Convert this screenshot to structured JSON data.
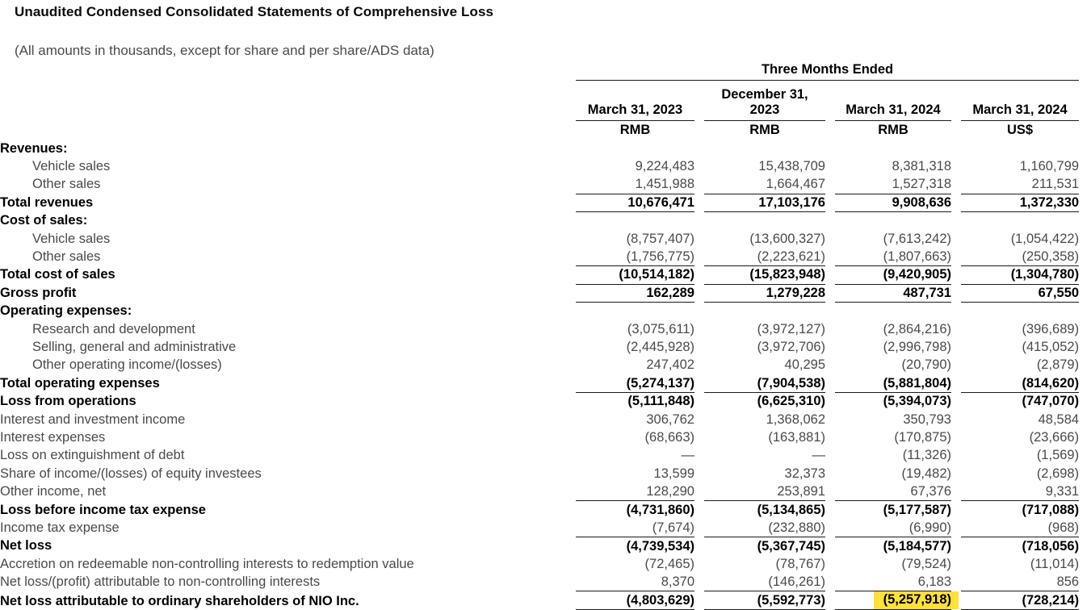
{
  "title": "Unaudited Condensed Consolidated Statements of Comprehensive Loss",
  "subtitle": "(All amounts in thousands, except for share and per share/ADS data)",
  "colors": {
    "highlight": "#ffe138",
    "text_primary": "#000000",
    "text_secondary": "#4a4a4a",
    "rule": "#1a1a1a"
  },
  "table": {
    "group_header": "Three Months Ended",
    "columns": [
      {
        "period": "March 31, 2023",
        "currency": "RMB"
      },
      {
        "period": "December 31, 2023",
        "currency": "RMB"
      },
      {
        "period": "March 31, 2024",
        "currency": "RMB"
      },
      {
        "period": "March 31, 2024",
        "currency": "US$"
      }
    ],
    "rows": [
      {
        "label": "Revenues:",
        "bold": true,
        "indent": false,
        "values": [
          "",
          "",
          "",
          ""
        ]
      },
      {
        "label": "Vehicle sales",
        "bold": false,
        "indent": true,
        "values": [
          "9,224,483",
          "15,438,709",
          "8,381,318",
          "1,160,799"
        ]
      },
      {
        "label": "Other sales",
        "bold": false,
        "indent": true,
        "underline": true,
        "values": [
          "1,451,988",
          "1,664,467",
          "1,527,318",
          "211,531"
        ]
      },
      {
        "label": "Total revenues",
        "bold": true,
        "indent": false,
        "underline": true,
        "values": [
          "10,676,471",
          "17,103,176",
          "9,908,636",
          "1,372,330"
        ]
      },
      {
        "label": "Cost of sales:",
        "bold": true,
        "indent": false,
        "values": [
          "",
          "",
          "",
          ""
        ]
      },
      {
        "label": "Vehicle sales",
        "bold": false,
        "indent": true,
        "values": [
          "(8,757,407)",
          "(13,600,327)",
          "(7,613,242)",
          "(1,054,422)"
        ]
      },
      {
        "label": "Other sales",
        "bold": false,
        "indent": true,
        "underline": true,
        "values": [
          "(1,756,775)",
          "(2,223,621)",
          "(1,807,663)",
          "(250,358)"
        ]
      },
      {
        "label": "Total cost of sales",
        "bold": true,
        "indent": false,
        "underline": true,
        "values": [
          "(10,514,182)",
          "(15,823,948)",
          "(9,420,905)",
          "(1,304,780)"
        ]
      },
      {
        "label": "Gross profit",
        "bold": true,
        "indent": false,
        "underline": true,
        "values": [
          "162,289",
          "1,279,228",
          "487,731",
          "67,550"
        ]
      },
      {
        "label": "Operating expenses:",
        "bold": true,
        "indent": false,
        "values": [
          "",
          "",
          "",
          ""
        ]
      },
      {
        "label": "Research and development",
        "bold": false,
        "indent": true,
        "values": [
          "(3,075,611)",
          "(3,972,127)",
          "(2,864,216)",
          "(396,689)"
        ]
      },
      {
        "label": "Selling, general and administrative",
        "bold": false,
        "indent": true,
        "values": [
          "(2,445,928)",
          "(3,972,706)",
          "(2,996,798)",
          "(415,052)"
        ]
      },
      {
        "label": "Other operating income/(losses)",
        "bold": false,
        "indent": true,
        "values": [
          "247,402",
          "40,295",
          "(20,790)",
          "(2,879)"
        ]
      },
      {
        "label": "Total operating expenses",
        "bold": true,
        "indent": false,
        "underline": true,
        "values": [
          "(5,274,137)",
          "(7,904,538)",
          "(5,881,804)",
          "(814,620)"
        ]
      },
      {
        "label": "Loss from operations",
        "bold": true,
        "indent": false,
        "values": [
          "(5,111,848)",
          "(6,625,310)",
          "(5,394,073)",
          "(747,070)"
        ]
      },
      {
        "label": "Interest and investment income",
        "bold": false,
        "indent": false,
        "values": [
          "306,762",
          "1,368,062",
          "350,793",
          "48,584"
        ]
      },
      {
        "label": "Interest expenses",
        "bold": false,
        "indent": false,
        "values": [
          "(68,663)",
          "(163,881)",
          "(170,875)",
          "(23,666)"
        ]
      },
      {
        "label": "Loss on extinguishment of debt",
        "bold": false,
        "indent": false,
        "values": [
          "—",
          "—",
          "(11,326)",
          "(1,569)"
        ]
      },
      {
        "label": "Share of income/(losses) of equity investees",
        "bold": false,
        "indent": false,
        "values": [
          "13,599",
          "32,373",
          "(19,482)",
          "(2,698)"
        ]
      },
      {
        "label": "Other income, net",
        "bold": false,
        "indent": false,
        "underline": true,
        "values": [
          "128,290",
          "253,891",
          "67,376",
          "9,331"
        ]
      },
      {
        "label": "Loss before income tax expense",
        "bold": true,
        "indent": false,
        "values": [
          "(4,731,860)",
          "(5,134,865)",
          "(5,177,587)",
          "(717,088)"
        ]
      },
      {
        "label": "Income tax expense",
        "bold": false,
        "indent": false,
        "underline": true,
        "values": [
          "(7,674)",
          "(232,880)",
          "(6,990)",
          "(968)"
        ]
      },
      {
        "label": "Net loss",
        "bold": true,
        "indent": false,
        "values": [
          "(4,739,534)",
          "(5,367,745)",
          "(5,184,577)",
          "(718,056)"
        ]
      },
      {
        "label": "Accretion on redeemable non-controlling interests to redemption value",
        "bold": false,
        "indent": false,
        "values": [
          "(72,465)",
          "(78,767)",
          "(79,524)",
          "(11,014)"
        ]
      },
      {
        "label": "Net loss/(profit) attributable to non-controlling interests",
        "bold": false,
        "indent": false,
        "underline": true,
        "values": [
          "8,370",
          "(146,261)",
          "6,183",
          "856"
        ]
      },
      {
        "label": "Net loss attributable to ordinary shareholders of NIO Inc.",
        "bold": true,
        "indent": false,
        "double": true,
        "highlight_col": 2,
        "values": [
          "(4,803,629)",
          "(5,592,773)",
          "(5,257,918)",
          "(728,214)"
        ]
      }
    ]
  }
}
